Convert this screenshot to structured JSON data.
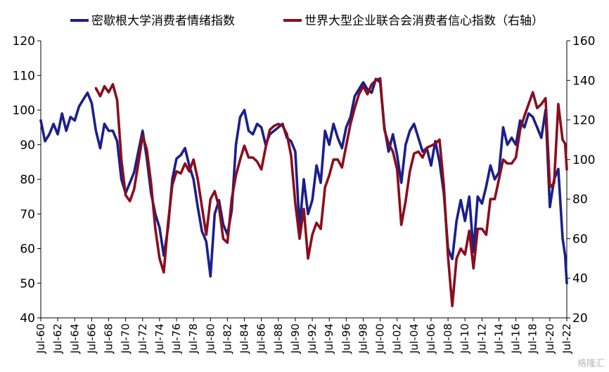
{
  "chart_data": {
    "type": "line",
    "title": "",
    "xlabel": "",
    "ylabel_left": "",
    "ylabel_right": "",
    "x_tick_labels": [
      "Jul-60",
      "Jul-62",
      "Jul-64",
      "Jul-66",
      "Jul-68",
      "Jul-70",
      "Jul-72",
      "Jul-74",
      "Jul-76",
      "Jul-78",
      "Jul-80",
      "Jul-82",
      "Jul-84",
      "Jul-86",
      "Jul-88",
      "Jul-90",
      "Jul-92",
      "Jul-94",
      "Jul-96",
      "Jul-98",
      "Jul-00",
      "Jul-02",
      "Jul-04",
      "Jul-06",
      "Jul-08",
      "Jul-10",
      "Jul-12",
      "Jul-14",
      "Jul-16",
      "Jul-18",
      "Jul-20",
      "Jul-22"
    ],
    "x_range": [
      1960.5,
      2022.5
    ],
    "y_left": {
      "range": [
        40,
        120
      ],
      "ticks": [
        40,
        50,
        60,
        70,
        80,
        90,
        100,
        110,
        120
      ]
    },
    "y_right": {
      "range": [
        20,
        160
      ],
      "ticks": [
        20,
        40,
        60,
        80,
        100,
        120,
        140,
        160
      ]
    },
    "grid": false,
    "legend_position": "top",
    "series": [
      {
        "name": "密歇根大学消费者情绪指数",
        "axis": "left",
        "color": "#1a1f8c",
        "points": [
          [
            1960.5,
            97
          ],
          [
            1961.0,
            91
          ],
          [
            1961.5,
            93
          ],
          [
            1962.0,
            96
          ],
          [
            1962.5,
            93
          ],
          [
            1963.0,
            99
          ],
          [
            1963.5,
            94
          ],
          [
            1964.0,
            98
          ],
          [
            1964.5,
            97
          ],
          [
            1965.0,
            101
          ],
          [
            1965.5,
            103
          ],
          [
            1966.0,
            105
          ],
          [
            1966.5,
            102
          ],
          [
            1967.0,
            94
          ],
          [
            1967.5,
            89
          ],
          [
            1968.0,
            96
          ],
          [
            1968.5,
            94
          ],
          [
            1969.0,
            94
          ],
          [
            1969.5,
            91
          ],
          [
            1970.0,
            80
          ],
          [
            1970.5,
            76
          ],
          [
            1971.0,
            79
          ],
          [
            1971.5,
            82
          ],
          [
            1972.0,
            88
          ],
          [
            1972.5,
            94
          ],
          [
            1973.0,
            86
          ],
          [
            1973.5,
            76
          ],
          [
            1974.0,
            70
          ],
          [
            1974.5,
            66
          ],
          [
            1975.0,
            58
          ],
          [
            1975.5,
            66
          ],
          [
            1976.0,
            80
          ],
          [
            1976.5,
            86
          ],
          [
            1977.0,
            87
          ],
          [
            1977.5,
            89
          ],
          [
            1978.0,
            84
          ],
          [
            1978.5,
            80
          ],
          [
            1979.0,
            72
          ],
          [
            1979.5,
            65
          ],
          [
            1980.0,
            62
          ],
          [
            1980.5,
            52
          ],
          [
            1981.0,
            70
          ],
          [
            1981.5,
            74
          ],
          [
            1982.0,
            67
          ],
          [
            1982.5,
            64
          ],
          [
            1983.0,
            71
          ],
          [
            1983.5,
            90
          ],
          [
            1984.0,
            98
          ],
          [
            1984.5,
            100
          ],
          [
            1985.0,
            94
          ],
          [
            1985.5,
            93
          ],
          [
            1986.0,
            96
          ],
          [
            1986.5,
            95
          ],
          [
            1987.0,
            90
          ],
          [
            1987.5,
            93
          ],
          [
            1988.0,
            94
          ],
          [
            1988.5,
            95
          ],
          [
            1989.0,
            96
          ],
          [
            1989.5,
            92
          ],
          [
            1990.0,
            91
          ],
          [
            1990.5,
            88
          ],
          [
            1991.0,
            66
          ],
          [
            1991.5,
            80
          ],
          [
            1992.0,
            70
          ],
          [
            1992.5,
            74
          ],
          [
            1993.0,
            84
          ],
          [
            1993.5,
            79
          ],
          [
            1994.0,
            94
          ],
          [
            1994.5,
            90
          ],
          [
            1995.0,
            96
          ],
          [
            1995.5,
            92
          ],
          [
            1996.0,
            89
          ],
          [
            1996.5,
            95
          ],
          [
            1997.0,
            98
          ],
          [
            1997.5,
            104
          ],
          [
            1998.0,
            106
          ],
          [
            1998.5,
            108
          ],
          [
            1999.0,
            106
          ],
          [
            1999.5,
            105
          ],
          [
            2000.0,
            109
          ],
          [
            2000.5,
            108
          ],
          [
            2001.0,
            95
          ],
          [
            2001.5,
            88
          ],
          [
            2002.0,
            93
          ],
          [
            2002.5,
            87
          ],
          [
            2003.0,
            79
          ],
          [
            2003.5,
            90
          ],
          [
            2004.0,
            94
          ],
          [
            2004.5,
            96
          ],
          [
            2005.0,
            92
          ],
          [
            2005.5,
            88
          ],
          [
            2006.0,
            89
          ],
          [
            2006.5,
            84
          ],
          [
            2007.0,
            91
          ],
          [
            2007.5,
            85
          ],
          [
            2008.0,
            76
          ],
          [
            2008.5,
            60
          ],
          [
            2009.0,
            57
          ],
          [
            2009.5,
            68
          ],
          [
            2010.0,
            74
          ],
          [
            2010.5,
            68
          ],
          [
            2011.0,
            75
          ],
          [
            2011.5,
            59
          ],
          [
            2012.0,
            75
          ],
          [
            2012.5,
            73
          ],
          [
            2013.0,
            78
          ],
          [
            2013.5,
            84
          ],
          [
            2014.0,
            80
          ],
          [
            2014.5,
            82
          ],
          [
            2015.0,
            95
          ],
          [
            2015.5,
            90
          ],
          [
            2016.0,
            92
          ],
          [
            2016.5,
            90
          ],
          [
            2017.0,
            97
          ],
          [
            2017.5,
            95
          ],
          [
            2018.0,
            99
          ],
          [
            2018.5,
            98
          ],
          [
            2019.0,
            95
          ],
          [
            2019.5,
            92
          ],
          [
            2020.0,
            100
          ],
          [
            2020.5,
            72
          ],
          [
            2021.0,
            80
          ],
          [
            2021.5,
            83
          ],
          [
            2022.0,
            63
          ],
          [
            2022.3,
            58
          ],
          [
            2022.5,
            50
          ]
        ]
      },
      {
        "name": "世界大型企业联合会消费者信心指数（右轴）",
        "axis": "right",
        "color": "#8b0d1c",
        "points": [
          [
            1967.0,
            136
          ],
          [
            1967.5,
            132
          ],
          [
            1968.0,
            137
          ],
          [
            1968.5,
            134
          ],
          [
            1969.0,
            138
          ],
          [
            1969.5,
            130
          ],
          [
            1970.0,
            100
          ],
          [
            1970.5,
            82
          ],
          [
            1971.0,
            79
          ],
          [
            1971.5,
            85
          ],
          [
            1972.0,
            98
          ],
          [
            1972.5,
            112
          ],
          [
            1973.0,
            105
          ],
          [
            1973.5,
            88
          ],
          [
            1974.0,
            65
          ],
          [
            1974.5,
            50
          ],
          [
            1975.0,
            43
          ],
          [
            1975.5,
            68
          ],
          [
            1976.0,
            87
          ],
          [
            1976.5,
            94
          ],
          [
            1977.0,
            93
          ],
          [
            1977.5,
            98
          ],
          [
            1978.0,
            94
          ],
          [
            1978.5,
            100
          ],
          [
            1979.0,
            90
          ],
          [
            1979.5,
            76
          ],
          [
            1980.0,
            62
          ],
          [
            1980.5,
            80
          ],
          [
            1981.0,
            84
          ],
          [
            1981.5,
            76
          ],
          [
            1982.0,
            60
          ],
          [
            1982.5,
            58
          ],
          [
            1983.0,
            80
          ],
          [
            1983.5,
            92
          ],
          [
            1984.0,
            100
          ],
          [
            1984.5,
            107
          ],
          [
            1985.0,
            101
          ],
          [
            1985.5,
            101
          ],
          [
            1986.0,
            99
          ],
          [
            1986.5,
            95
          ],
          [
            1987.0,
            106
          ],
          [
            1987.5,
            115
          ],
          [
            1988.0,
            117
          ],
          [
            1988.5,
            118
          ],
          [
            1989.0,
            117
          ],
          [
            1989.5,
            113
          ],
          [
            1990.0,
            102
          ],
          [
            1990.5,
            78
          ],
          [
            1991.0,
            60
          ],
          [
            1991.5,
            75
          ],
          [
            1992.0,
            50
          ],
          [
            1992.5,
            62
          ],
          [
            1993.0,
            68
          ],
          [
            1993.5,
            65
          ],
          [
            1994.0,
            86
          ],
          [
            1994.5,
            92
          ],
          [
            1995.0,
            100
          ],
          [
            1995.5,
            100
          ],
          [
            1996.0,
            96
          ],
          [
            1996.5,
            107
          ],
          [
            1997.0,
            118
          ],
          [
            1997.5,
            126
          ],
          [
            1998.0,
            133
          ],
          [
            1998.5,
            137
          ],
          [
            1999.0,
            133
          ],
          [
            1999.5,
            138
          ],
          [
            2000.0,
            140
          ],
          [
            2000.5,
            141
          ],
          [
            2001.0,
            115
          ],
          [
            2001.5,
            108
          ],
          [
            2002.0,
            104
          ],
          [
            2002.5,
            95
          ],
          [
            2003.0,
            67
          ],
          [
            2003.5,
            79
          ],
          [
            2004.0,
            94
          ],
          [
            2004.5,
            103
          ],
          [
            2005.0,
            104
          ],
          [
            2005.5,
            101
          ],
          [
            2006.0,
            106
          ],
          [
            2006.5,
            107
          ],
          [
            2007.0,
            108
          ],
          [
            2007.5,
            110
          ],
          [
            2008.0,
            87
          ],
          [
            2008.5,
            51
          ],
          [
            2009.0,
            26
          ],
          [
            2009.5,
            50
          ],
          [
            2010.0,
            55
          ],
          [
            2010.5,
            52
          ],
          [
            2011.0,
            64
          ],
          [
            2011.5,
            45
          ],
          [
            2012.0,
            65
          ],
          [
            2012.5,
            65
          ],
          [
            2013.0,
            62
          ],
          [
            2013.5,
            80
          ],
          [
            2014.0,
            80
          ],
          [
            2014.5,
            90
          ],
          [
            2015.0,
            100
          ],
          [
            2015.5,
            98
          ],
          [
            2016.0,
            98
          ],
          [
            2016.5,
            101
          ],
          [
            2017.0,
            115
          ],
          [
            2017.5,
            122
          ],
          [
            2018.0,
            128
          ],
          [
            2018.5,
            134
          ],
          [
            2019.0,
            126
          ],
          [
            2019.5,
            128
          ],
          [
            2020.0,
            131
          ],
          [
            2020.5,
            86
          ],
          [
            2021.0,
            88
          ],
          [
            2021.5,
            128
          ],
          [
            2022.0,
            110
          ],
          [
            2022.3,
            108
          ],
          [
            2022.5,
            95
          ]
        ]
      }
    ]
  },
  "watermark": "格隆汇"
}
